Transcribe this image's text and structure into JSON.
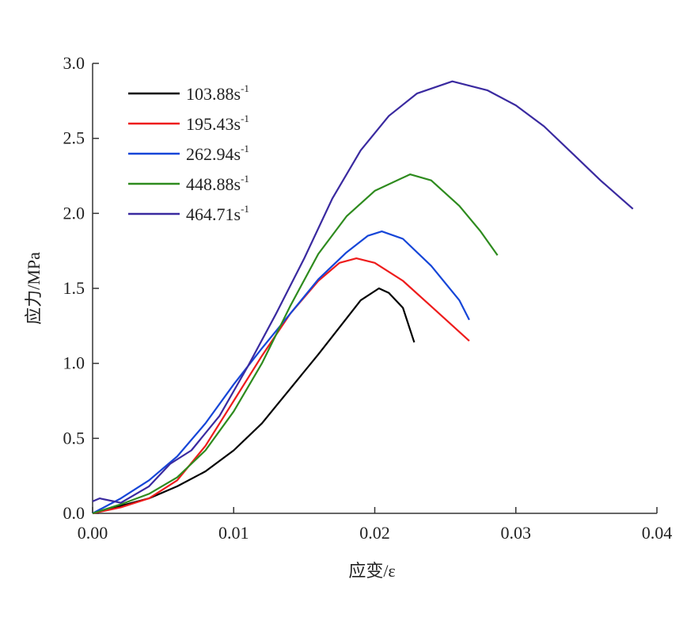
{
  "chart_data": {
    "type": "line",
    "title": "",
    "xlabel": "应变/ε",
    "ylabel": "应力/MPa",
    "xlim": [
      0,
      0.04
    ],
    "ylim": [
      0,
      3.0
    ],
    "xticks": [
      "0.00",
      "0.01",
      "0.02",
      "0.03",
      "0.04"
    ],
    "yticks": [
      "0.0",
      "0.5",
      "1.0",
      "1.5",
      "2.0",
      "2.5",
      "3.0"
    ],
    "grid": false,
    "legend_position": "top-left",
    "legend_unit": "s",
    "legend_exp": "-1",
    "series": [
      {
        "name": "103.88",
        "color": "#000000",
        "x": [
          0,
          0.002,
          0.004,
          0.006,
          0.008,
          0.01,
          0.012,
          0.014,
          0.016,
          0.018,
          0.019,
          0.0203,
          0.021,
          0.022,
          0.0228
        ],
        "y": [
          0,
          0.05,
          0.1,
          0.18,
          0.28,
          0.42,
          0.6,
          0.83,
          1.06,
          1.3,
          1.42,
          1.5,
          1.47,
          1.37,
          1.14
        ]
      },
      {
        "name": "195.43",
        "color": "#ee1c1c",
        "x": [
          0,
          0.002,
          0.004,
          0.006,
          0.008,
          0.01,
          0.012,
          0.014,
          0.016,
          0.0175,
          0.0187,
          0.02,
          0.022,
          0.024,
          0.0267
        ],
        "y": [
          0,
          0.04,
          0.1,
          0.22,
          0.45,
          0.75,
          1.05,
          1.33,
          1.55,
          1.67,
          1.7,
          1.67,
          1.55,
          1.38,
          1.15
        ]
      },
      {
        "name": "262.94",
        "color": "#1646d8",
        "x": [
          0,
          0.002,
          0.004,
          0.006,
          0.008,
          0.01,
          0.012,
          0.014,
          0.016,
          0.018,
          0.0195,
          0.0205,
          0.022,
          0.024,
          0.026,
          0.0267
        ],
        "y": [
          0,
          0.1,
          0.22,
          0.38,
          0.6,
          0.86,
          1.1,
          1.33,
          1.56,
          1.74,
          1.85,
          1.88,
          1.83,
          1.65,
          1.42,
          1.29
        ]
      },
      {
        "name": "448.88",
        "color": "#2e8b1e",
        "x": [
          0,
          0.002,
          0.004,
          0.006,
          0.008,
          0.01,
          0.012,
          0.014,
          0.016,
          0.018,
          0.02,
          0.0225,
          0.024,
          0.026,
          0.0275,
          0.0287
        ],
        "y": [
          0,
          0.06,
          0.13,
          0.24,
          0.42,
          0.68,
          1.0,
          1.38,
          1.73,
          1.98,
          2.15,
          2.26,
          2.22,
          2.05,
          1.88,
          1.72
        ]
      },
      {
        "name": "464.71",
        "color": "#3a2aa0",
        "x": [
          0,
          0.0005,
          0.001,
          0.002,
          0.004,
          0.0055,
          0.007,
          0.009,
          0.011,
          0.013,
          0.015,
          0.017,
          0.019,
          0.021,
          0.023,
          0.0255,
          0.028,
          0.03,
          0.032,
          0.034,
          0.036,
          0.0383
        ],
        "y": [
          0.08,
          0.1,
          0.09,
          0.07,
          0.18,
          0.33,
          0.42,
          0.65,
          0.98,
          1.33,
          1.7,
          2.1,
          2.42,
          2.65,
          2.8,
          2.88,
          2.82,
          2.72,
          2.58,
          2.4,
          2.22,
          2.03
        ]
      }
    ]
  }
}
